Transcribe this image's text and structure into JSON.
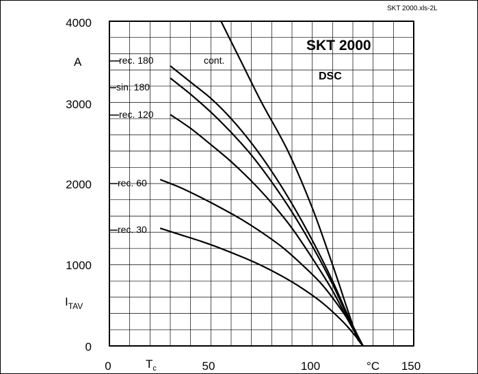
{
  "chart_data": {
    "type": "line",
    "title": "SKT 2000",
    "subtitle": "DSC",
    "file_ref": "SKT 2000.xls-2L",
    "xlabel": {
      "main": "T",
      "sub": "c"
    },
    "xunit": "°C",
    "ylabel": {
      "main": "I",
      "sub": "TAV"
    },
    "yunit": "A",
    "xlim": [
      0,
      150
    ],
    "ylim": [
      0,
      4000
    ],
    "x_ticks": [
      "0",
      "50",
      "100",
      "150"
    ],
    "y_ticks": [
      "0",
      "1000",
      "2000",
      "3000",
      "4000"
    ],
    "grid": true,
    "series": [
      {
        "name": "cont.",
        "points": [
          [
            55,
            4000
          ],
          [
            65,
            3500
          ],
          [
            75,
            3000
          ],
          [
            88,
            2400
          ],
          [
            100,
            1700
          ],
          [
            110,
            1000
          ],
          [
            116,
            550
          ],
          [
            120,
            250
          ],
          [
            122,
            100
          ],
          [
            125,
            0
          ]
        ]
      },
      {
        "name": "rec. 180",
        "points": [
          [
            30,
            3450
          ],
          [
            40,
            3250
          ],
          [
            50,
            3050
          ],
          [
            60,
            2800
          ],
          [
            70,
            2500
          ],
          [
            80,
            2150
          ],
          [
            90,
            1750
          ],
          [
            100,
            1300
          ],
          [
            110,
            800
          ],
          [
            118,
            350
          ],
          [
            125,
            0
          ]
        ]
      },
      {
        "name": "sin. 180",
        "points": [
          [
            30,
            3300
          ],
          [
            40,
            3100
          ],
          [
            50,
            2880
          ],
          [
            60,
            2630
          ],
          [
            70,
            2350
          ],
          [
            80,
            2020
          ],
          [
            90,
            1650
          ],
          [
            100,
            1230
          ],
          [
            110,
            760
          ],
          [
            118,
            330
          ],
          [
            125,
            0
          ]
        ]
      },
      {
        "name": "rec. 120",
        "points": [
          [
            30,
            2850
          ],
          [
            40,
            2680
          ],
          [
            50,
            2480
          ],
          [
            60,
            2270
          ],
          [
            70,
            2030
          ],
          [
            80,
            1760
          ],
          [
            90,
            1450
          ],
          [
            100,
            1080
          ],
          [
            110,
            680
          ],
          [
            118,
            300
          ],
          [
            125,
            0
          ]
        ]
      },
      {
        "name": "rec. 60",
        "points": [
          [
            25,
            2050
          ],
          [
            35,
            1950
          ],
          [
            45,
            1830
          ],
          [
            55,
            1700
          ],
          [
            65,
            1560
          ],
          [
            75,
            1400
          ],
          [
            85,
            1220
          ],
          [
            95,
            1000
          ],
          [
            105,
            750
          ],
          [
            115,
            420
          ],
          [
            121,
            180
          ],
          [
            125,
            0
          ]
        ]
      },
      {
        "name": "rec. 30",
        "points": [
          [
            25,
            1450
          ],
          [
            35,
            1370
          ],
          [
            45,
            1290
          ],
          [
            55,
            1200
          ],
          [
            65,
            1100
          ],
          [
            75,
            990
          ],
          [
            85,
            860
          ],
          [
            95,
            710
          ],
          [
            105,
            530
          ],
          [
            115,
            300
          ],
          [
            121,
            130
          ],
          [
            125,
            0
          ]
        ]
      }
    ],
    "labels": [
      {
        "text": "rec. 180",
        "series": "rec. 180"
      },
      {
        "text": "sin. 180",
        "series": "sin. 180"
      },
      {
        "text": "rec. 120",
        "series": "rec. 120"
      },
      {
        "text": "rec. 60",
        "series": "rec. 60"
      },
      {
        "text": "rec. 30",
        "series": "rec. 30"
      },
      {
        "text": "cont.",
        "series": "cont."
      }
    ]
  }
}
